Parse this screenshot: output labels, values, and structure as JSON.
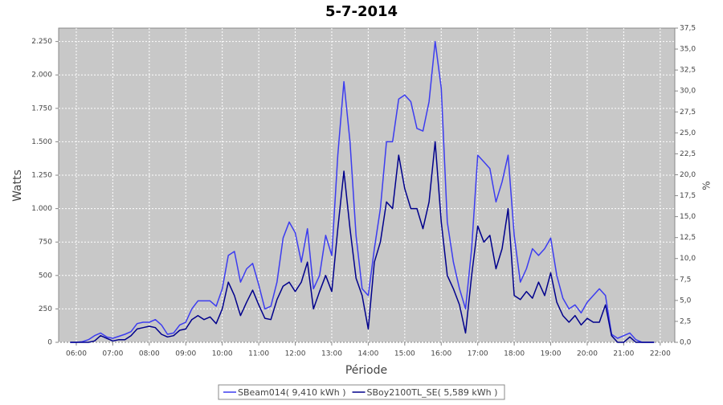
{
  "chart_data": {
    "type": "line",
    "title": "5-7-2014",
    "xlabel": "Période",
    "ylabel": "Watts",
    "y2label": "%",
    "x": [
      "05:50",
      "06:00",
      "06:10",
      "06:20",
      "06:30",
      "06:40",
      "06:50",
      "07:00",
      "07:10",
      "07:20",
      "07:30",
      "07:40",
      "07:50",
      "08:00",
      "08:10",
      "08:20",
      "08:30",
      "08:40",
      "08:50",
      "09:00",
      "09:10",
      "09:20",
      "09:30",
      "09:40",
      "09:50",
      "10:00",
      "10:10",
      "10:20",
      "10:30",
      "10:40",
      "10:50",
      "11:00",
      "11:10",
      "11:20",
      "11:30",
      "11:40",
      "11:50",
      "12:00",
      "12:10",
      "12:20",
      "12:30",
      "12:40",
      "12:50",
      "13:00",
      "13:10",
      "13:20",
      "13:30",
      "13:40",
      "13:50",
      "14:00",
      "14:10",
      "14:20",
      "14:30",
      "14:40",
      "14:50",
      "15:00",
      "15:10",
      "15:20",
      "15:30",
      "15:40",
      "15:50",
      "16:00",
      "16:10",
      "16:20",
      "16:30",
      "16:40",
      "16:50",
      "17:00",
      "17:10",
      "17:20",
      "17:30",
      "17:40",
      "17:50",
      "18:00",
      "18:10",
      "18:20",
      "18:30",
      "18:40",
      "18:50",
      "19:00",
      "19:10",
      "19:20",
      "19:30",
      "19:40",
      "19:50",
      "20:00",
      "20:10",
      "20:20",
      "20:30",
      "20:40",
      "20:50",
      "21:00",
      "21:10",
      "21:20",
      "21:30",
      "21:40",
      "21:50"
    ],
    "series": [
      {
        "name": "SBeam014( 9,410 kWh )",
        "color": "#3c3cf0",
        "values": [
          0,
          0,
          5,
          20,
          50,
          70,
          40,
          30,
          45,
          60,
          80,
          140,
          150,
          150,
          170,
          130,
          60,
          70,
          130,
          150,
          250,
          310,
          310,
          310,
          270,
          400,
          650,
          680,
          450,
          550,
          590,
          430,
          250,
          270,
          450,
          780,
          900,
          820,
          600,
          850,
          400,
          500,
          800,
          650,
          1400,
          1950,
          1500,
          800,
          400,
          350,
          700,
          1000,
          1500,
          1500,
          1820,
          1850,
          1800,
          1600,
          1580,
          1800,
          2250,
          1900,
          900,
          600,
          400,
          250,
          700,
          1400,
          1350,
          1300,
          1050,
          1200,
          1400,
          800,
          450,
          550,
          700,
          650,
          700,
          780,
          500,
          330,
          250,
          280,
          220,
          300,
          350,
          400,
          350,
          60,
          30,
          50,
          70,
          20,
          0,
          0,
          0
        ]
      },
      {
        "name": "SBoy2100TL_SE( 5,589 kWh )",
        "color": "#00008c",
        "values": [
          0,
          0,
          0,
          0,
          10,
          50,
          30,
          10,
          20,
          20,
          50,
          100,
          110,
          120,
          110,
          60,
          40,
          50,
          90,
          100,
          170,
          200,
          170,
          190,
          140,
          250,
          450,
          350,
          200,
          300,
          390,
          280,
          180,
          170,
          320,
          420,
          450,
          380,
          450,
          600,
          250,
          380,
          500,
          380,
          850,
          1280,
          850,
          480,
          350,
          100,
          600,
          750,
          1050,
          1000,
          1400,
          1150,
          1000,
          1000,
          850,
          1050,
          1500,
          900,
          500,
          400,
          280,
          70,
          500,
          870,
          750,
          800,
          550,
          700,
          1000,
          350,
          320,
          380,
          330,
          450,
          350,
          520,
          300,
          200,
          150,
          200,
          130,
          180,
          150,
          150,
          280,
          50,
          0,
          0,
          40,
          0,
          0,
          0,
          0
        ]
      }
    ],
    "xlim": [
      "05:31",
      "22:24"
    ],
    "xticks": [
      "06:00",
      "07:00",
      "08:00",
      "09:00",
      "10:00",
      "11:00",
      "12:00",
      "13:00",
      "14:00",
      "15:00",
      "16:00",
      "17:00",
      "18:00",
      "19:00",
      "20:00",
      "21:00",
      "22:00"
    ],
    "ylim": [
      0,
      2350
    ],
    "yticks": [
      0,
      250,
      500,
      750,
      {
        "value": 1000,
        "label": "1.000"
      },
      {
        "value": 1250,
        "label": "1.250"
      },
      {
        "value": 1500,
        "label": "1.500"
      },
      {
        "value": 1750,
        "label": "1.750"
      },
      {
        "value": 2000,
        "label": "2.000"
      },
      {
        "value": 2250,
        "label": "2.250"
      }
    ],
    "y2lim": [
      0,
      37.5
    ],
    "y2ticks": [
      {
        "value": 0,
        "label": "0,0"
      },
      {
        "value": 2.5,
        "label": "2,5"
      },
      {
        "value": 5,
        "label": "5,0"
      },
      {
        "value": 7.5,
        "label": "7,5"
      },
      {
        "value": 10,
        "label": "10,0"
      },
      {
        "value": 12.5,
        "label": "12,5"
      },
      {
        "value": 15,
        "label": "15,0"
      },
      {
        "value": 17.5,
        "label": "17,5"
      },
      {
        "value": 20,
        "label": "20,0"
      },
      {
        "value": 22.5,
        "label": "22,5"
      },
      {
        "value": 25,
        "label": "25,0"
      },
      {
        "value": 27.5,
        "label": "27,5"
      },
      {
        "value": 30,
        "label": "30,0"
      },
      {
        "value": 32.5,
        "label": "32,5"
      },
      {
        "value": 35,
        "label": "35,0"
      },
      {
        "value": 37.5,
        "label": "37,5"
      }
    ],
    "grid": true,
    "legend": "bottom"
  }
}
